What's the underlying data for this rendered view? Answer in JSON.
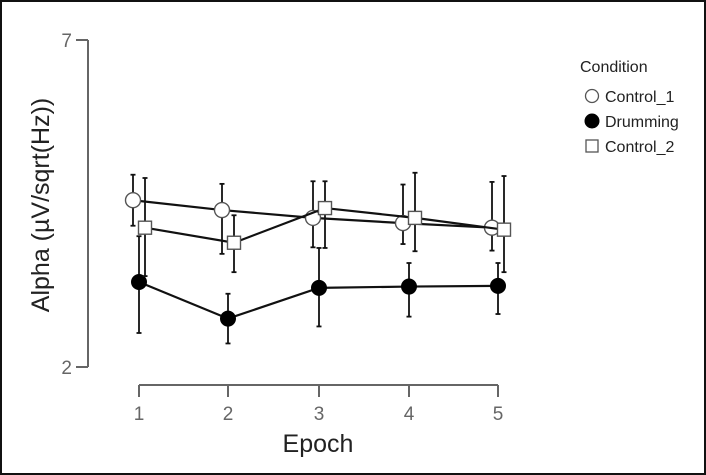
{
  "chart_data": {
    "type": "line",
    "title": "",
    "xlabel": "Epoch",
    "ylabel": "Alpha (µV/sqrt(Hz))",
    "x": [
      1,
      2,
      3,
      4,
      5
    ],
    "x_ticks": [
      "1",
      "2",
      "3",
      "4",
      "5"
    ],
    "y_ticks": [
      "2",
      "7"
    ],
    "ylim": [
      2,
      7
    ],
    "grid": false,
    "legend_position": "right",
    "legend_title": "Condition",
    "series": [
      {
        "name": "Control_1",
        "marker": "open-circle",
        "values": [
          4.55,
          4.4,
          4.28,
          4.2,
          4.13
        ],
        "error_low": [
          4.16,
          3.73,
          3.83,
          3.88,
          3.78
        ],
        "error_high": [
          4.94,
          4.8,
          4.84,
          4.79,
          4.83
        ]
      },
      {
        "name": "Drumming",
        "marker": "filled-circle",
        "values": [
          3.3,
          2.74,
          3.21,
          3.23,
          3.24
        ],
        "error_low": [
          2.52,
          2.36,
          2.62,
          2.77,
          2.81
        ],
        "error_high": [
          4.0,
          3.12,
          3.82,
          3.59,
          3.59
        ]
      },
      {
        "name": "Control_2",
        "marker": "open-square",
        "values": [
          4.13,
          3.9,
          4.43,
          4.28,
          4.1
        ],
        "error_low": [
          3.39,
          3.45,
          3.82,
          3.77,
          3.45
        ],
        "error_high": [
          4.89,
          4.32,
          4.84,
          4.97,
          4.92
        ]
      }
    ]
  },
  "legend": {
    "title": "Condition",
    "items": [
      {
        "label": "Control_1",
        "marker": "open-circle"
      },
      {
        "label": "Drumming",
        "marker": "filled-circle"
      },
      {
        "label": "Control_2",
        "marker": "open-square"
      }
    ]
  },
  "colors": {
    "frame": "#111111",
    "axis": "#666666",
    "series_line": "#111111",
    "marker_fill_open": "#ffffff",
    "marker_fill_filled": "#000000",
    "marker_stroke_open": "#555555"
  }
}
